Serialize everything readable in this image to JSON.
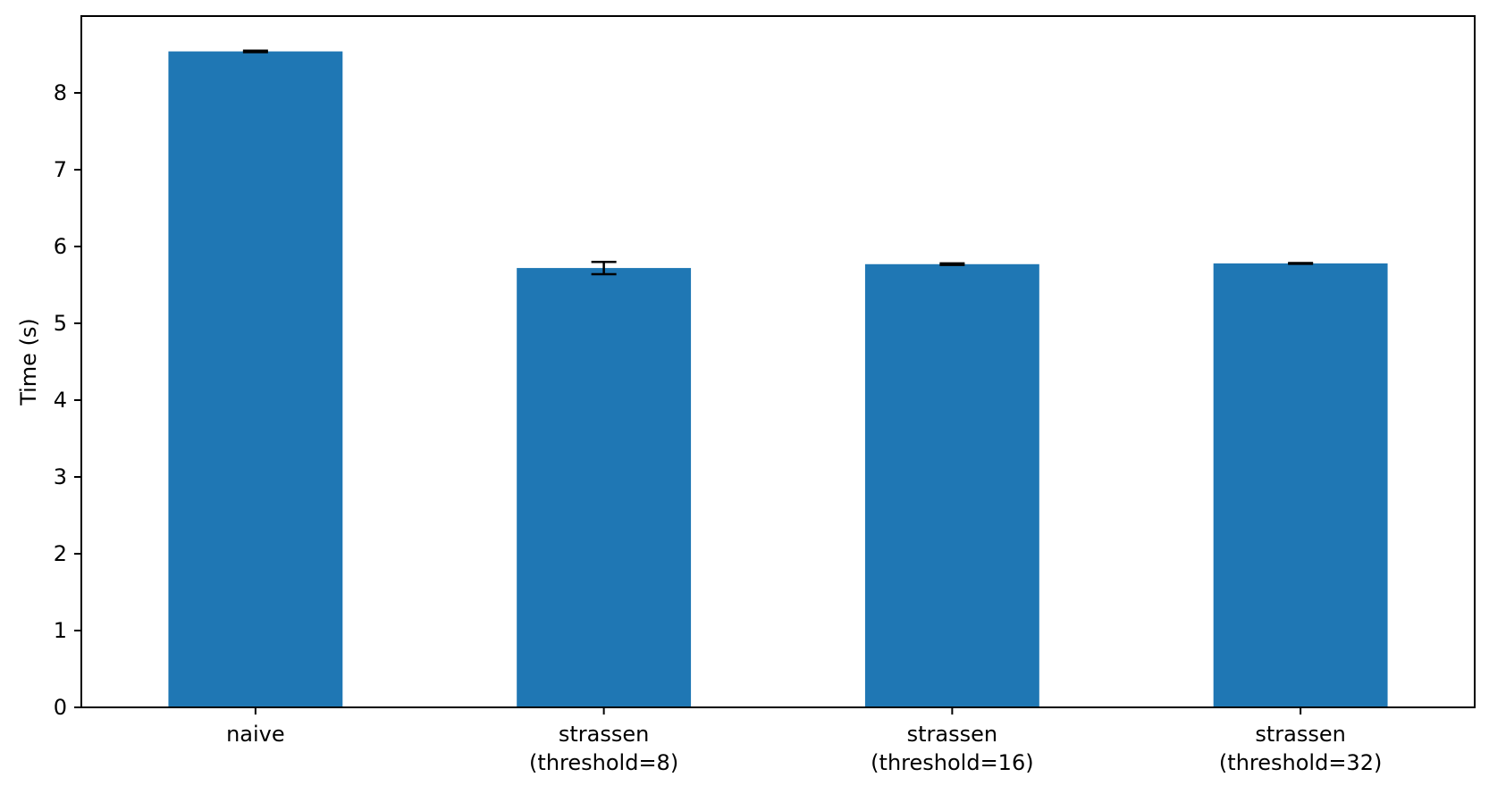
{
  "chart_data": {
    "type": "bar",
    "title": "",
    "xlabel": "",
    "ylabel": "Time (s)",
    "categories": [
      [
        "naive"
      ],
      [
        "strassen",
        "(threshold=8)"
      ],
      [
        "strassen",
        "(threshold=16)"
      ],
      [
        "strassen",
        "(threshold=32)"
      ]
    ],
    "values": [
      8.54,
      5.72,
      5.77,
      5.78
    ],
    "errors": [
      0.01,
      0.08,
      0.01,
      0.005
    ],
    "ylim": [
      0,
      9
    ],
    "yticks": [
      "0",
      "1",
      "2",
      "3",
      "4",
      "5",
      "6",
      "7",
      "8"
    ],
    "grid": false,
    "legend": false,
    "colors": {
      "bar": "#1f77b4",
      "errorbar": "#000000",
      "axes": "#000000"
    }
  }
}
